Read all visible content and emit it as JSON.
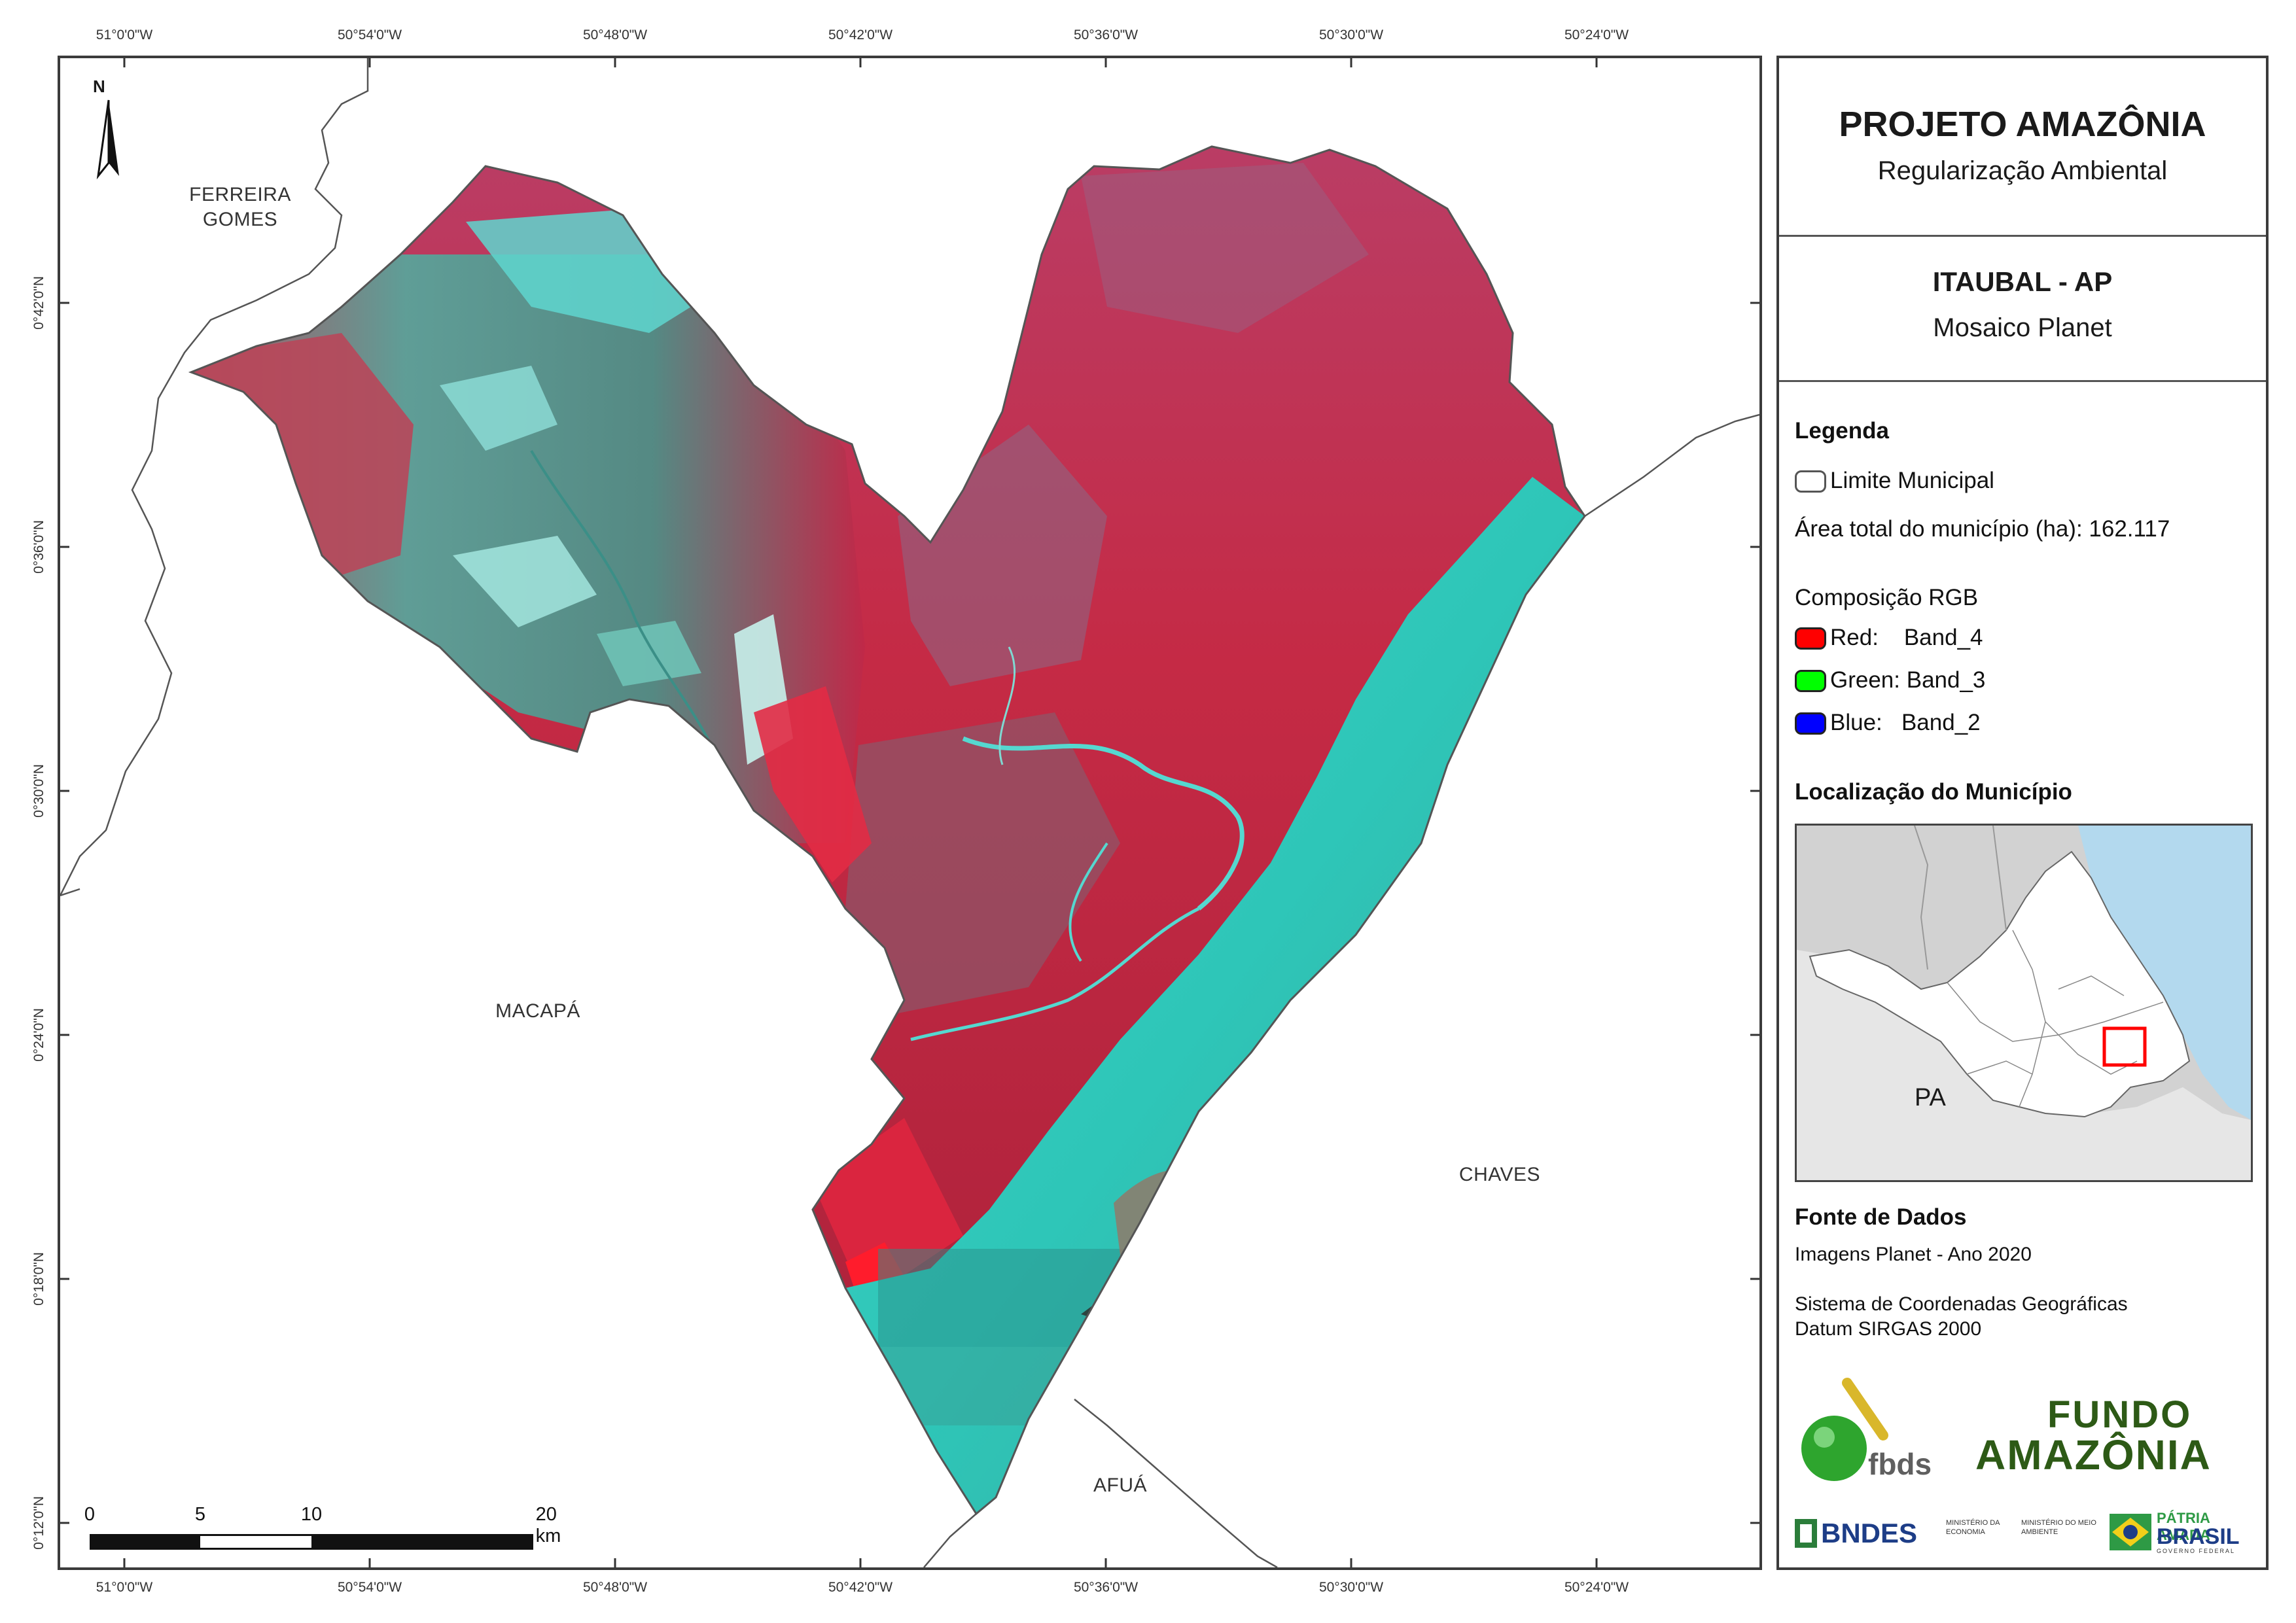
{
  "map": {
    "north_label": "N",
    "coords_top": [
      "51°0'0\"W",
      "50°54'0\"W",
      "50°48'0\"W",
      "50°42'0\"W",
      "50°36'0\"W",
      "50°30'0\"W",
      "50°24'0\"W"
    ],
    "coords_bottom": [
      "51°0'0\"W",
      "50°54'0\"W",
      "50°48'0\"W",
      "50°42'0\"W",
      "50°36'0\"W",
      "50°30'0\"W",
      "50°24'0\"W"
    ],
    "coords_left": [
      "0°42'0\"N",
      "0°36'0\"N",
      "0°30'0\"N",
      "0°24'0\"N",
      "0°18'0\"N",
      "0°12'0\"N"
    ],
    "places": {
      "ferreira_gomes": "FERREIRA GOMES",
      "macapa": "MACAPÁ",
      "chaves": "CHAVES",
      "afua": "AFUÁ"
    },
    "scale": {
      "labels": [
        "0",
        "5",
        "10",
        "20 km"
      ]
    },
    "colors": {
      "vegetation_red": "#c8243f",
      "water_cyan": "#2ec6b8",
      "pasture_teal": "#5a9e93",
      "municipal_line": "#555555"
    }
  },
  "panel": {
    "title": "PROJETO AMAZÔNIA",
    "subtitle": "Regularização Ambiental",
    "municipality": "ITAUBAL - AP",
    "mosaic": "Mosaico Planet",
    "legend_heading": "Legenda",
    "legend_limit": "Limite Municipal",
    "legend_area": "Área total do município (ha): 162.117",
    "rgb_heading": "Composição RGB",
    "rgb": [
      {
        "label": "Red:    Band_4",
        "color": "#ff0000"
      },
      {
        "label": "Green: Band_3",
        "color": "#00ff00"
      },
      {
        "label": "Blue:   Band_2",
        "color": "#0000ff"
      }
    ],
    "location_heading": "Localização do Município",
    "inset_state_label": "PA",
    "inset_colors": {
      "land": "#e0e0e0",
      "ocean": "#b3d9ee",
      "amapa": "#ffffff",
      "highlight": "#ff0000"
    },
    "sources_heading": "Fonte de Dados",
    "source_images": "Imagens Planet - Ano 2020",
    "crs_line1": "Sistema de Coordenadas Geográficas",
    "crs_line2": "Datum SIRGAS 2000",
    "logos": {
      "fbds": "fbds",
      "fundo_line1": "FUNDO",
      "fundo_line2": "AMAZÔNIA",
      "bndes": "BNDES",
      "min_economia": "MINISTÉRIO DA ECONOMIA",
      "min_meio_ambiente": "MINISTÉRIO DO MEIO AMBIENTE",
      "patria_line1": "PÁTRIA AMADA",
      "patria_line2": "BRASIL",
      "patria_line3": "GOVERNO FEDERAL"
    }
  }
}
